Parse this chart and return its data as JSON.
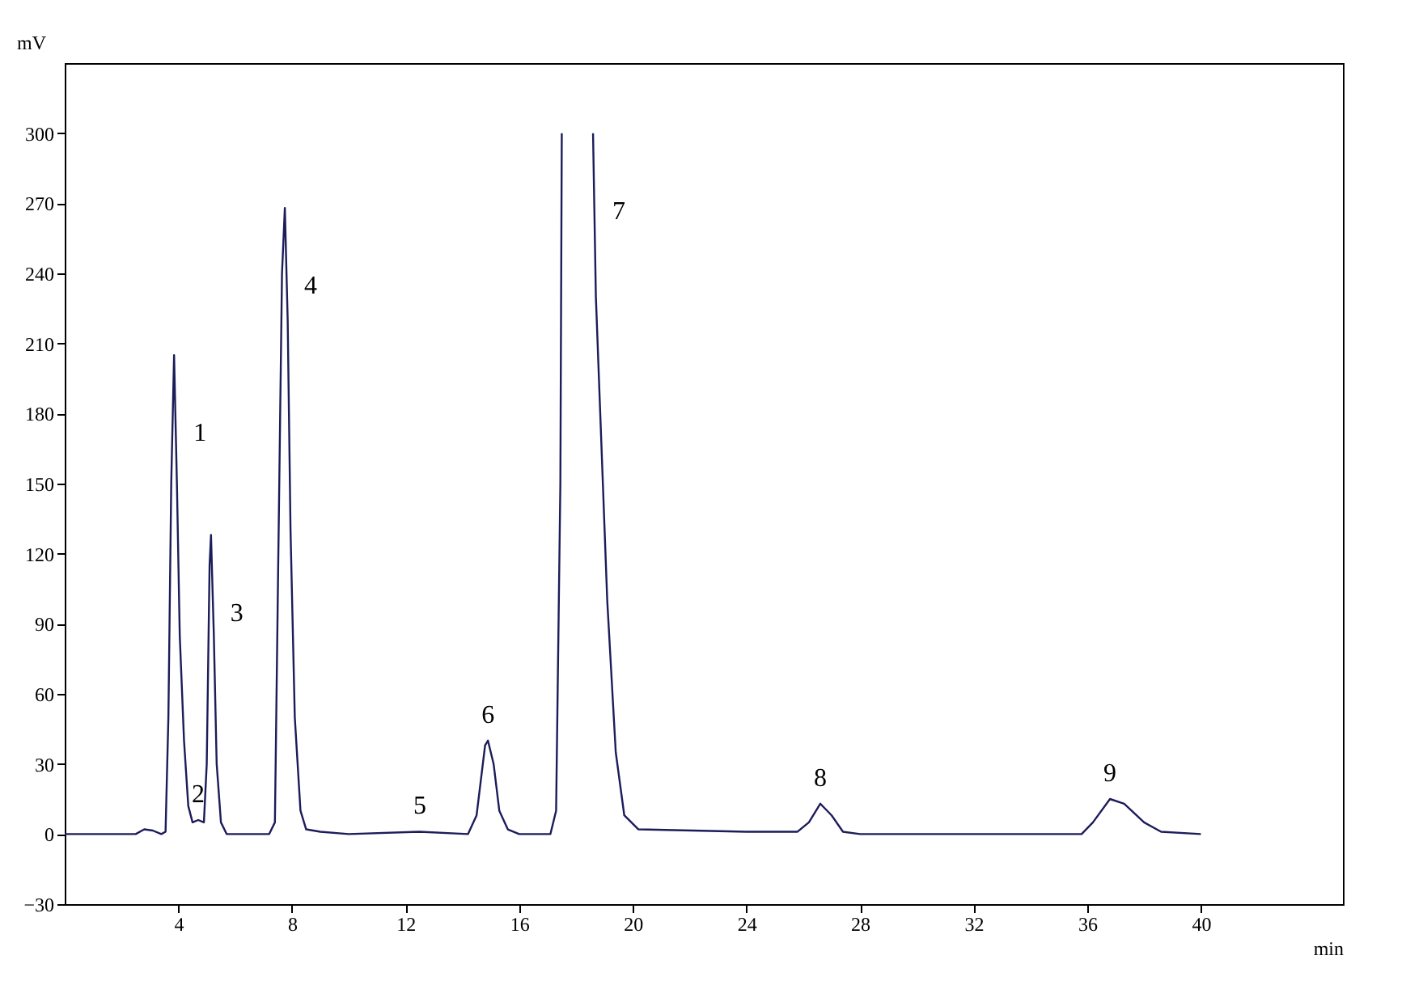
{
  "chart_data": {
    "type": "line",
    "xlabel": "min",
    "ylabel": "mV",
    "x": [
      0,
      2.5,
      2.8,
      3.1,
      3.4,
      3.55,
      3.65,
      3.75,
      3.85,
      3.95,
      4.05,
      4.2,
      4.35,
      4.5,
      4.7,
      4.9,
      5.0,
      5.1,
      5.15,
      5.25,
      5.35,
      5.5,
      5.7,
      7.2,
      7.4,
      7.5,
      7.65,
      7.75,
      7.85,
      7.95,
      8.1,
      8.3,
      8.5,
      9,
      10,
      12.5,
      14.2,
      14.5,
      14.8,
      14.9,
      15.1,
      15.3,
      15.6,
      16,
      17.1,
      17.3,
      17.45,
      17.5,
      17.55,
      18.5,
      18.6,
      18.7,
      19.1,
      19.4,
      19.7,
      20.2,
      24,
      25.8,
      26.2,
      26.6,
      27.0,
      27.4,
      28,
      35.8,
      36.2,
      36.8,
      37.3,
      38,
      38.6,
      40
    ],
    "series": [
      {
        "color": "#1c1c5a",
        "values": [
          0,
          0,
          2,
          1.5,
          0,
          1,
          50,
          150,
          205,
          150,
          85,
          40,
          12,
          5,
          6,
          5,
          30,
          115,
          128,
          85,
          30,
          5,
          0,
          0,
          5,
          100,
          240,
          268,
          220,
          130,
          50,
          10,
          2,
          1,
          0,
          1,
          0,
          8,
          38,
          40,
          30,
          10,
          2,
          0,
          0,
          10,
          150,
          300,
          null,
          null,
          300,
          230,
          100,
          35,
          8,
          2,
          1,
          1,
          5,
          13,
          8,
          1,
          0,
          0,
          5,
          15,
          13,
          5,
          1,
          0
        ]
      }
    ],
    "xlim": [
      0,
      45
    ],
    "xticks": [
      4,
      8,
      12,
      16,
      20,
      24,
      28,
      32,
      36,
      40
    ],
    "ylim": [
      -30,
      330
    ],
    "yticks": [
      -30,
      0,
      30,
      60,
      90,
      120,
      150,
      180,
      210,
      240,
      270,
      300
    ],
    "grid": false,
    "marker": "none",
    "line_style": "solid",
    "annotations": [
      {
        "text": "1",
        "x": 3.85,
        "y": 205
      },
      {
        "text": "2",
        "x": 4.7,
        "y": 6
      },
      {
        "text": "3",
        "x": 5.15,
        "y": 128
      },
      {
        "text": "4",
        "x": 7.75,
        "y": 268
      },
      {
        "text": "5",
        "x": 12.5,
        "y": 1
      },
      {
        "text": "6",
        "x": 14.9,
        "y": 40
      },
      {
        "text": "7",
        "x": 18.6,
        "y": 300
      },
      {
        "text": "8",
        "x": 26.6,
        "y": 13
      },
      {
        "text": "9",
        "x": 36.8,
        "y": 15
      }
    ]
  }
}
